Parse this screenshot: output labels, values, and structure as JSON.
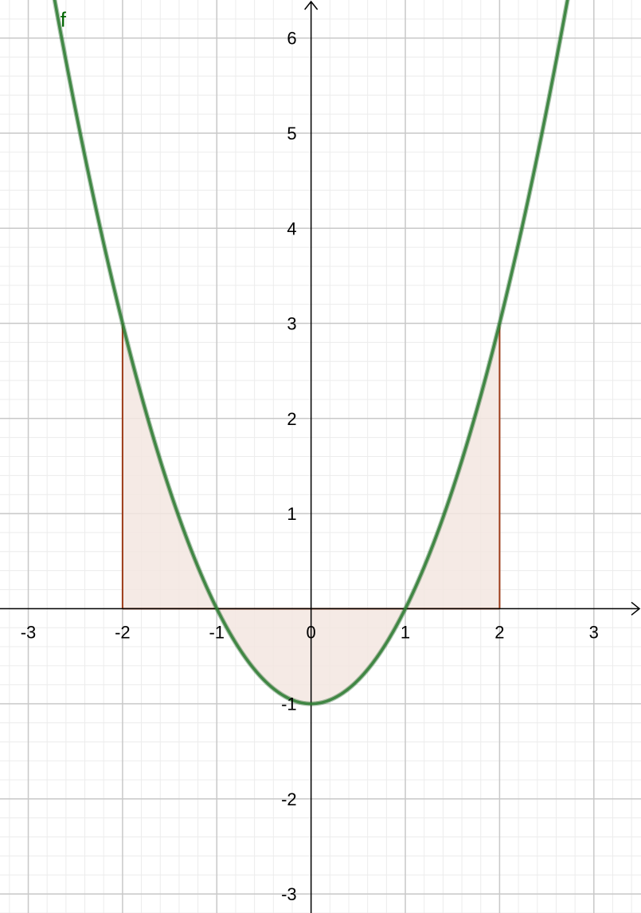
{
  "chart_data": {
    "type": "area",
    "function": {
      "name": "f",
      "expression": "x^2 - 1",
      "color": "#2e7d32",
      "x": [
        -2.75,
        -2.5,
        -2.25,
        -2,
        -1.75,
        -1.5,
        -1.25,
        -1,
        -0.75,
        -0.5,
        -0.25,
        0,
        0.25,
        0.5,
        0.75,
        1,
        1.25,
        1.5,
        1.75,
        2,
        2.25,
        2.5,
        2.75
      ],
      "y": [
        6.5625,
        5.25,
        4.0625,
        3,
        2.0625,
        1.25,
        0.5625,
        0,
        -0.4375,
        -0.75,
        -0.9375,
        -1,
        -0.9375,
        -0.75,
        -0.4375,
        0,
        0.5625,
        1.25,
        2.0625,
        3,
        4.0625,
        5.25,
        6.5625
      ]
    },
    "shaded_region": {
      "from": -2,
      "to": 2,
      "fill": "#f3e6e0",
      "border": "#9c3a17"
    },
    "xlim": [
      -3.3,
      3.5
    ],
    "ylim": [
      -3.2,
      6.4
    ],
    "x_ticks": [
      -3,
      -2,
      -1,
      0,
      1,
      2,
      3
    ],
    "y_ticks": [
      -3,
      -2,
      -1,
      1,
      2,
      3,
      4,
      5,
      6
    ],
    "x_tick_labels": [
      "-3",
      "-2",
      "-1",
      "0",
      "1",
      "2",
      "3"
    ],
    "y_tick_labels": [
      "-3",
      "-2",
      "-1",
      "1",
      "2",
      "3",
      "4",
      "5",
      "6"
    ],
    "grid": true,
    "minor_grid_per_unit": 5,
    "colors": {
      "major_grid": "#c8c8c8",
      "minor_grid": "#ececec",
      "axis": "#000000"
    }
  }
}
